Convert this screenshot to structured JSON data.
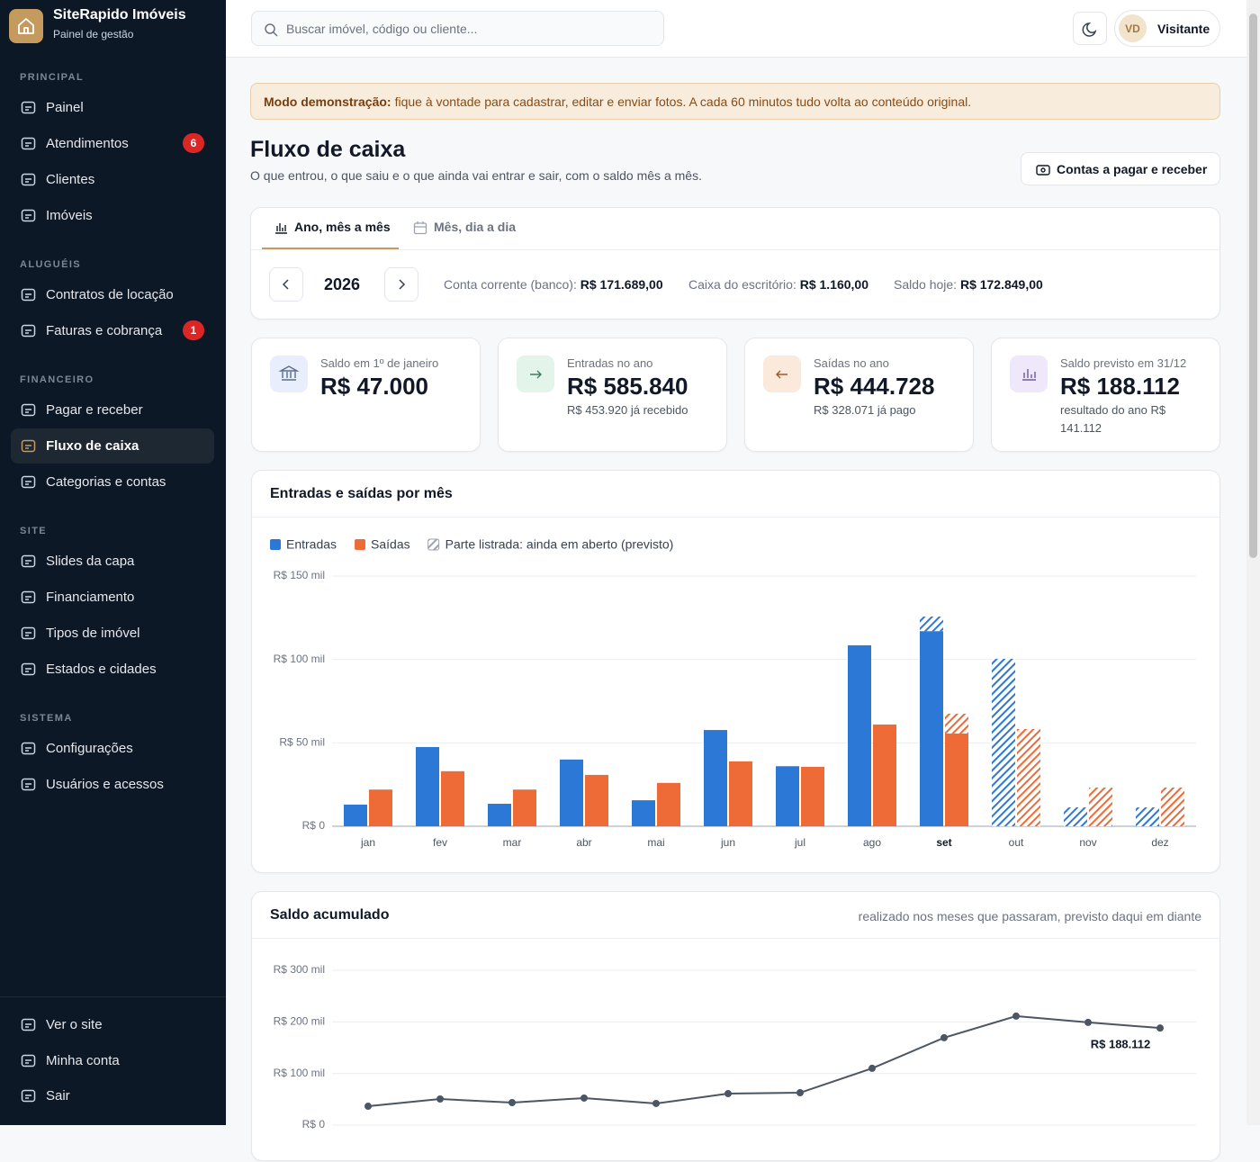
{
  "sidebar": {
    "brand": "SiteRapido Imóveis",
    "subtitle": "Painel de gestão",
    "sections": [
      {
        "title": "PRINCIPAL",
        "items": [
          {
            "label": "Painel"
          },
          {
            "label": "Atendimentos",
            "badge": 6
          },
          {
            "label": "Clientes"
          },
          {
            "label": "Imóveis"
          }
        ]
      },
      {
        "title": "ALUGUÉIS",
        "items": [
          {
            "label": "Contratos de locação"
          },
          {
            "label": "Faturas e cobrança",
            "badge": 1
          }
        ]
      },
      {
        "title": "FINANCEIRO",
        "items": [
          {
            "label": "Pagar e receber"
          },
          {
            "label": "Fluxo de caixa",
            "active": true
          },
          {
            "label": "Categorias e contas"
          }
        ]
      },
      {
        "title": "SITE",
        "items": [
          {
            "label": "Slides da capa"
          },
          {
            "label": "Financiamento"
          },
          {
            "label": "Tipos de imóvel"
          },
          {
            "label": "Estados e cidades"
          }
        ]
      },
      {
        "title": "SISTEMA",
        "items": [
          {
            "label": "Configurações"
          },
          {
            "label": "Usuários e acessos"
          }
        ]
      }
    ],
    "footer": [
      "Ver o site",
      "Minha conta",
      "Sair"
    ]
  },
  "topbar": {
    "search_placeholder": "Buscar imóvel, código ou cliente...",
    "avatar": "VD",
    "user": "Visitante"
  },
  "notice": {
    "bold": "Modo demonstração:",
    "text": "fique à vontade para cadastrar, editar e enviar fotos. A cada 60 minutos tudo volta ao conteúdo original."
  },
  "header": {
    "title": "Fluxo de caixa",
    "subtitle": "O que entrou, o que saiu e o que ainda vai entrar e sair, com o saldo mês a mês.",
    "button": "Contas a pagar e receber"
  },
  "tabs": [
    "Ano, mês a mês",
    "Mês, dia a dia"
  ],
  "year": 2026,
  "balances": [
    {
      "label": "Conta corrente (banco):",
      "value": "R$ 171.689,00"
    },
    {
      "label": "Caixa do escritório:",
      "value": "R$ 1.160,00"
    },
    {
      "label": "Saldo hoje:",
      "value": "R$ 172.849,00"
    }
  ],
  "cards": [
    {
      "label": "Saldo em 1º de janeiro",
      "value": "R$ 47.000"
    },
    {
      "label": "Entradas no ano",
      "value": "R$ 585.840",
      "note": "R$ 453.920 já recebido"
    },
    {
      "label": "Saídas no ano",
      "value": "R$ 444.728",
      "note": "R$ 328.071 já pago"
    },
    {
      "label": "Saldo previsto em 31/12",
      "value": "R$ 188.112",
      "note": "resultado do ano R$ 141.112"
    }
  ],
  "chart_data": [
    {
      "type": "bar",
      "title": "Entradas e saídas por mês",
      "hatch_label": "Parte listrada: ainda em aberto (previsto)",
      "categories": [
        "jan",
        "fev",
        "mar",
        "abr",
        "mai",
        "jun",
        "jul",
        "ago",
        "set",
        "out",
        "nov",
        "dez"
      ],
      "series": [
        {
          "name": "Entradas",
          "color": "#2b78d6",
          "values": [
            13,
            47.5,
            13.5,
            40,
            15.6,
            57.7,
            36,
            108.5,
            117,
            0,
            0,
            0
          ],
          "open": [
            0,
            0,
            0,
            0,
            0,
            0,
            0,
            0,
            8.7,
            100.4,
            11.3,
            11.3
          ]
        },
        {
          "name": "Saídas",
          "color": "#ee6a36",
          "values": [
            22,
            33,
            22,
            30.8,
            26,
            38.9,
            35.6,
            61,
            55.6,
            0,
            0,
            0
          ],
          "open": [
            0,
            0,
            0,
            0,
            0,
            0,
            0,
            0,
            11.9,
            58.3,
            23.2,
            23.2
          ]
        }
      ],
      "ylim": [
        0,
        150
      ],
      "yticks": [
        {
          "value": 0,
          "label": "R$ 0"
        },
        {
          "value": 50,
          "label": "R$ 50 mil"
        },
        {
          "value": 100,
          "label": "R$ 100 mil"
        },
        {
          "value": 150,
          "label": "R$ 150 mil"
        }
      ],
      "grid": true
    },
    {
      "type": "line",
      "title": "Saldo acumulado",
      "subtitle": "realizado nos meses que passaram, previsto daqui em diante",
      "values": [
        36.6,
        50.6,
        43.6,
        52.4,
        41.9,
        61,
        62.8,
        110,
        169.3,
        211.2,
        199,
        188.112
      ],
      "value_labels": [
        null,
        null,
        null,
        null,
        null,
        null,
        null,
        null,
        null,
        null,
        null,
        "R$ 188.112"
      ],
      "color": "#4b5563",
      "ylim": [
        0,
        300
      ],
      "yticks": [
        {
          "value": 0,
          "label": "R$ 0"
        },
        {
          "value": 100,
          "label": "R$ 100 mil"
        },
        {
          "value": 200,
          "label": "R$ 200 mil"
        },
        {
          "value": 300,
          "label": "R$ 300 mil"
        }
      ],
      "grid": true
    }
  ]
}
